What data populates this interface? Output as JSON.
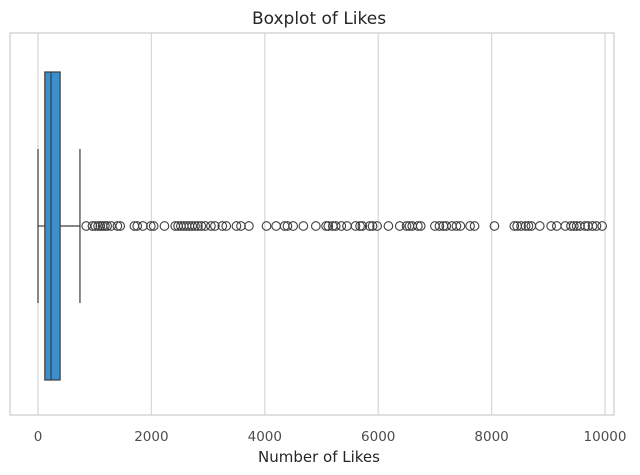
{
  "chart_data": {
    "type": "box",
    "title": "Boxplot of Likes",
    "xlabel": "Number of Likes",
    "ylabel": "",
    "xlim": [
      -500,
      10500
    ],
    "x_ticks": [
      0,
      2000,
      4000,
      6000,
      8000,
      10000
    ],
    "x_tick_labels": [
      "0",
      "2000",
      "4000",
      "6000",
      "8000",
      "10000"
    ],
    "grid": "vertical",
    "box": {
      "whisker_low": 0,
      "q1": 120,
      "median": 230,
      "q3": 390,
      "whisker_high": 740,
      "fill": "#3a8fcc",
      "line": "#3d3d3d"
    },
    "outliers": [
      850,
      960,
      1010,
      1060,
      1100,
      1140,
      1180,
      1220,
      1290,
      1400,
      1450,
      1700,
      1750,
      1850,
      1990,
      2040,
      2230,
      2420,
      2470,
      2520,
      2570,
      2620,
      2670,
      2720,
      2770,
      2820,
      2880,
      2950,
      3050,
      3120,
      3250,
      3320,
      3500,
      3580,
      3720,
      4030,
      4200,
      4350,
      4400,
      4500,
      4680,
      4900,
      5080,
      5120,
      5200,
      5250,
      5350,
      5450,
      5600,
      5680,
      5720,
      5850,
      5900,
      5980,
      6180,
      6380,
      6500,
      6550,
      6600,
      6700,
      6750,
      7000,
      7080,
      7150,
      7200,
      7300,
      7380,
      7450,
      7620,
      7700,
      8050,
      8400,
      8450,
      8520,
      8600,
      8650,
      8700,
      8850,
      9050,
      9150,
      9300,
      9400,
      9450,
      9500,
      9560,
      9650,
      9700,
      9780,
      9850,
      9950
    ]
  }
}
